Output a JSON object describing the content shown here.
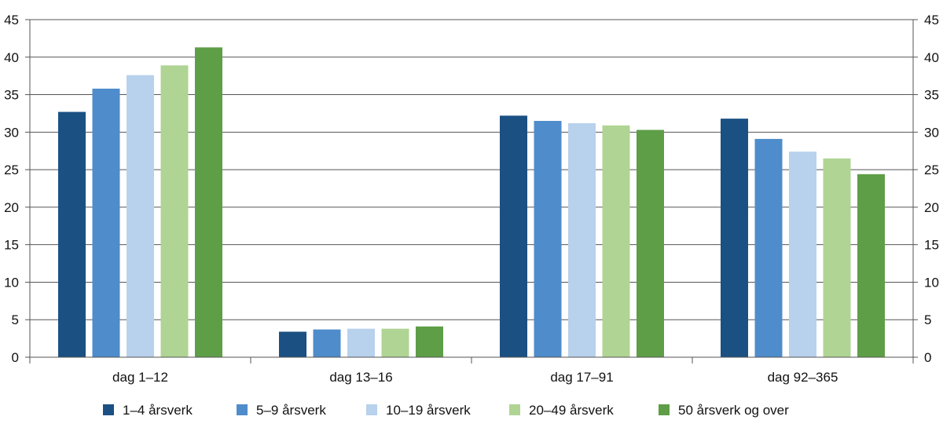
{
  "chart_data": {
    "type": "bar",
    "categories": [
      "dag 1–12",
      "dag 13–16",
      "dag 17–91",
      "dag 92–365"
    ],
    "series": [
      {
        "name": "1–4 årsverk",
        "color": "#1b5083",
        "values": [
          32.7,
          3.4,
          32.2,
          31.8
        ]
      },
      {
        "name": "5–9 årsverk",
        "color": "#4f8ccb",
        "values": [
          35.8,
          3.7,
          31.5,
          29.1
        ]
      },
      {
        "name": "10–19 årsverk",
        "color": "#b8d1ec",
        "values": [
          37.6,
          3.8,
          31.2,
          27.4
        ]
      },
      {
        "name": "20–49 årsverk",
        "color": "#b0d494",
        "values": [
          38.9,
          3.8,
          30.9,
          26.5
        ]
      },
      {
        "name": "50 årsverk og over",
        "color": "#5e9e47",
        "values": [
          41.3,
          4.1,
          30.3,
          24.4
        ]
      }
    ],
    "ylim": [
      0,
      45
    ],
    "yticks": [
      "0",
      "5",
      "10",
      "15",
      "20",
      "25",
      "30",
      "35",
      "40",
      "45"
    ],
    "ytick_values": [
      0,
      5,
      10,
      15,
      20,
      25,
      30,
      35,
      40,
      45
    ],
    "grid": true,
    "legend_position": "bottom",
    "title": "",
    "xlabel": "",
    "ylabel": ""
  }
}
